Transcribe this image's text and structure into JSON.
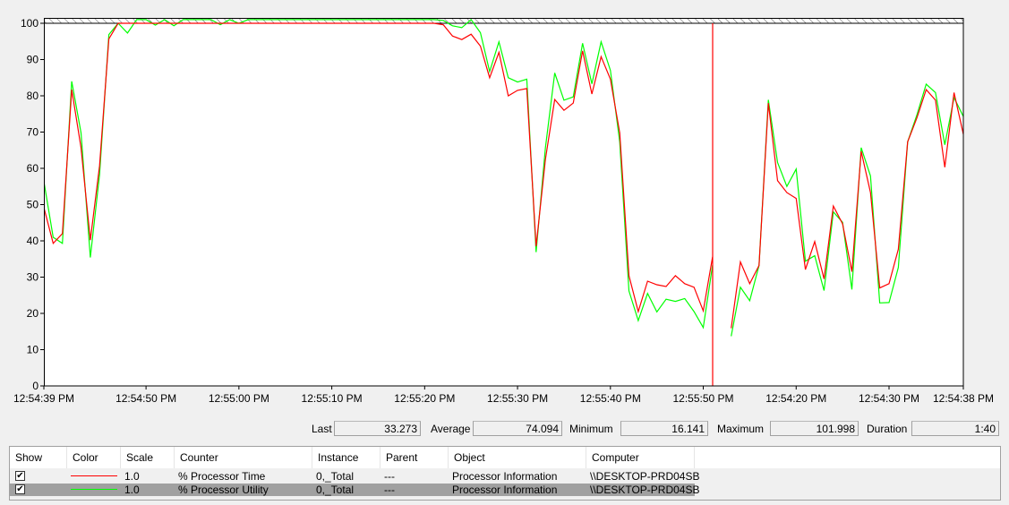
{
  "chart_data": {
    "type": "line",
    "y_ticks": [
      "100",
      "90",
      "80",
      "70",
      "60",
      "50",
      "40",
      "30",
      "20",
      "10",
      "0"
    ],
    "ylim": [
      0,
      100
    ],
    "x_tick_labels": [
      "12:54:39 PM",
      "12:54:50 PM",
      "12:55:00 PM",
      "12:55:10 PM",
      "12:55:20 PM",
      "12:55:30 PM",
      "12:55:40 PM",
      "12:55:50 PM",
      "12:54:20 PM",
      "12:54:30 PM",
      "12:54:38 PM"
    ],
    "grid": false,
    "overflow_hatch_above": 100,
    "current_time_marker_color": "#ff0000",
    "series": [
      {
        "name": "% Processor Time",
        "color": "#ff0000",
        "values": [
          49.2,
          39.3,
          42,
          81.7,
          65.7,
          40.2,
          60.7,
          95.7,
          100,
          100,
          100,
          100,
          100,
          100,
          100,
          100,
          100,
          100,
          100,
          100,
          100,
          100,
          100,
          100,
          100,
          100,
          100,
          100,
          100,
          100,
          100,
          100,
          100,
          100,
          100,
          100,
          100,
          100,
          100,
          100,
          100,
          100,
          100,
          99.6,
          96.5,
          95.5,
          97,
          93.7,
          85,
          92,
          80,
          81.5,
          82,
          38.5,
          62.5,
          79,
          76,
          78,
          92.4,
          80.5,
          90.8,
          84.6,
          69.8,
          30.4,
          20.5,
          28.9,
          27.9,
          27.4,
          30.4,
          28.2,
          27.2,
          20.7,
          35.6,
          null,
          15.9,
          34.2,
          28.2,
          33.2,
          78,
          56.6,
          53.3,
          51.7,
          32.1,
          39.8,
          29.5,
          49.6,
          44.7,
          31.5,
          64.7,
          53.3,
          27,
          28.2,
          37.7,
          67.3,
          73.9,
          81.7,
          78.8,
          60.3,
          80.9,
          69.4
        ]
      },
      {
        "name": "% Processor Utility",
        "color": "#00ff00",
        "values": [
          56.4,
          41,
          39.3,
          84,
          69.8,
          35.4,
          58.3,
          96.9,
          100,
          97.3,
          101,
          101,
          99.5,
          101,
          99.3,
          101,
          101,
          101,
          101,
          99.6,
          101,
          100,
          101,
          101,
          101,
          101,
          101,
          101,
          101,
          101,
          101,
          101,
          101,
          101,
          101,
          101,
          101,
          101,
          101,
          101,
          101,
          101,
          101,
          100.8,
          99.3,
          98.8,
          101,
          97.4,
          86.7,
          94.9,
          85,
          83.8,
          84.6,
          36.9,
          65.7,
          86.3,
          78.8,
          79.7,
          94.5,
          83.3,
          94.9,
          87,
          67.3,
          26.2,
          18,
          25.5,
          20.4,
          23.9,
          23.3,
          24.1,
          20.5,
          16.1,
          33.3,
          null,
          13.7,
          27.2,
          23.5,
          33.2,
          78.9,
          61.6,
          55,
          59.8,
          34.4,
          35.9,
          26.3,
          48,
          45.1,
          26.6,
          65.7,
          57.9,
          22.9,
          23,
          32.7,
          67.3,
          74.7,
          83.2,
          80.9,
          66.5,
          79.5,
          74.3
        ]
      }
    ]
  },
  "stats": {
    "last_label": "Last",
    "last_value": "33.273",
    "average_label": "Average",
    "average_value": "74.094",
    "minimum_label": "Minimum",
    "minimum_value": "16.141",
    "maximum_label": "Maximum",
    "maximum_value": "101.998",
    "duration_label": "Duration",
    "duration_value": "1:40"
  },
  "legend_table": {
    "headers": [
      "Show",
      "Color",
      "Scale",
      "Counter",
      "Instance",
      "Parent",
      "Object",
      "Computer"
    ],
    "rows": [
      {
        "show": "✔",
        "color": "#ff0000",
        "scale": "1.0",
        "counter": "% Processor Time",
        "instance": "0,_Total",
        "parent": "---",
        "object": "Processor Information",
        "computer": "\\\\DESKTOP-PRD04SB",
        "selected": false
      },
      {
        "show": "✔",
        "color": "#00ff00",
        "scale": "1.0",
        "counter": "% Processor Utility",
        "instance": "0,_Total",
        "parent": "---",
        "object": "Processor Information",
        "computer": "\\\\DESKTOP-PRD04SB",
        "selected": true
      }
    ]
  }
}
